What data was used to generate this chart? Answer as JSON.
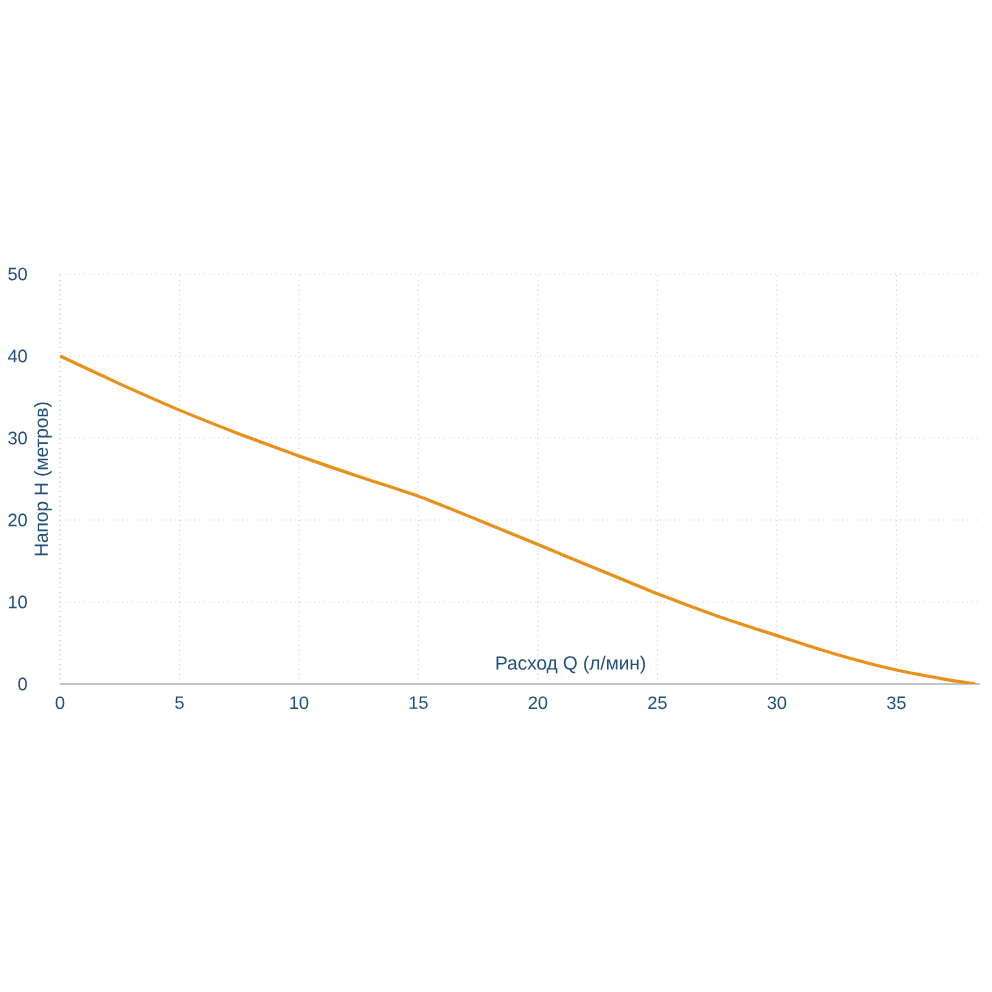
{
  "chart_data": {
    "type": "line",
    "xlabel": "Расход Q (л/мин)",
    "ylabel": "Напор H (метров)",
    "x": [
      0,
      2.5,
      5,
      7.5,
      10,
      12.5,
      15,
      17.5,
      20,
      22.5,
      25,
      27.5,
      30,
      32.5,
      35,
      37,
      38.3
    ],
    "series": [
      {
        "color": "#e8901c",
        "values": [
          40,
          36.6,
          33.4,
          30.5,
          27.8,
          25.3,
          22.9,
          20,
          17,
          14,
          11,
          8.3,
          5.9,
          3.6,
          1.7,
          0.6,
          0
        ]
      }
    ],
    "xlim": [
      0,
      38.5
    ],
    "ylim": [
      0,
      50
    ],
    "xticks": [
      0,
      5,
      10,
      15,
      20,
      25,
      30,
      35
    ],
    "yticks": [
      0,
      10,
      20,
      30,
      40,
      50
    ],
    "grid": true,
    "marker": "none",
    "line_style": "solid"
  }
}
